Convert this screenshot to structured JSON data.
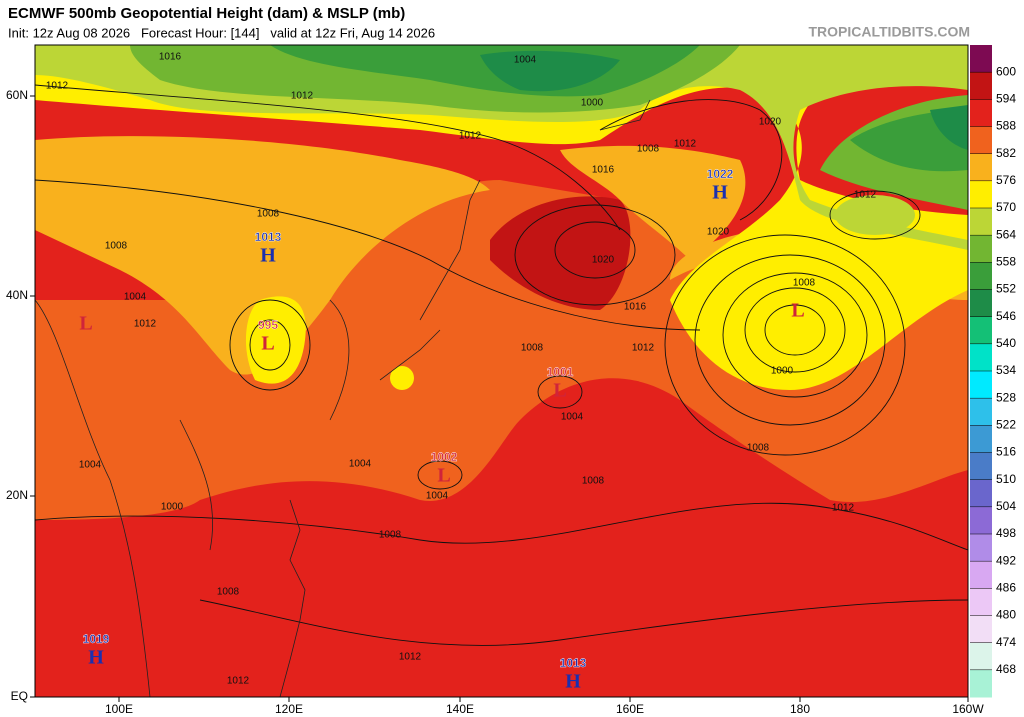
{
  "header": {
    "title": "ECMWF 500mb Geopotential Height (dam) & MSLP (mb)",
    "subtitle": "Init: 12z Aug 08 2026   Forecast Hour: [144]   valid at 12z Fri, Aug 14 2026",
    "brand": "TROPICALTIDBITS.COM"
  },
  "colorbar": {
    "labels": [
      600,
      594,
      588,
      582,
      576,
      570,
      564,
      558,
      552,
      546,
      540,
      534,
      528,
      522,
      516,
      510,
      504,
      498,
      492,
      486,
      480,
      474,
      468
    ],
    "colors": [
      "#7d0a52",
      "#c21414",
      "#e3221c",
      "#f0621e",
      "#f9b11d",
      "#ffee00",
      "#bcd636",
      "#72b632",
      "#3a9e3a",
      "#1e8c48",
      "#14c076",
      "#00e2c8",
      "#00eaff",
      "#2ec0ea",
      "#3c9ad4",
      "#4a7cc8",
      "#6a66cc",
      "#8c6ad6",
      "#b08ce8",
      "#d8a8f2",
      "#ecc8f6",
      "#f2def6",
      "#dcf4ea",
      "#a8f2d6"
    ]
  },
  "axes": {
    "lon_labels": [
      "100E",
      "120E",
      "140E",
      "160E",
      "180",
      "160W"
    ],
    "lat_labels": [
      "60N",
      "40N",
      "20N",
      "EQ"
    ]
  },
  "centers": [
    {
      "type": "H",
      "value": 1013
    },
    {
      "type": "L",
      "value": 995
    },
    {
      "type": "H",
      "value": 1022
    },
    {
      "type": "L"
    },
    {
      "type": "L",
      "value": 1001
    },
    {
      "type": "L",
      "value": 1002
    },
    {
      "type": "H",
      "value": 1019
    },
    {
      "type": "H",
      "value": 1013
    },
    {
      "type": "L"
    }
  ],
  "isobar_labels": [
    1016,
    1012,
    1004,
    1000,
    1012,
    1012,
    1008,
    1012,
    1016,
    1020,
    1012,
    1020,
    1020,
    1016,
    1012,
    1008,
    1008,
    1000,
    1004,
    1008,
    1008,
    1012,
    1004,
    1004,
    1008,
    1008,
    1012,
    1012,
    1008,
    1012,
    1008,
    1004,
    1000,
    1004
  ]
}
